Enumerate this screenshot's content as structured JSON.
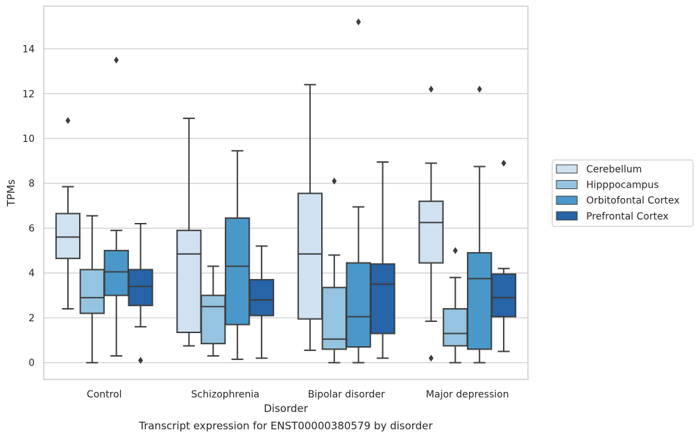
{
  "caption": "Transcript expression for ENST00000380579 by disorder",
  "chart_data": {
    "type": "box",
    "xlabel": "Disorder",
    "ylabel": "TPMs",
    "ylim": [
      -0.75,
      15.9
    ],
    "yticks": [
      0,
      2,
      4,
      6,
      8,
      10,
      12,
      14
    ],
    "grid": "horizontal",
    "legend_position": "right",
    "categories": [
      "Control",
      "Schizophrenia",
      "Bipolar disorder",
      "Major depression"
    ],
    "series": [
      {
        "name": "Cerebellum",
        "color": "#d0e1f2",
        "boxes": [
          {
            "whisker_low": 2.4,
            "q1": 4.65,
            "median": 5.6,
            "q3": 6.65,
            "whisker_high": 7.85,
            "outliers": [
              10.8
            ]
          },
          {
            "whisker_low": 0.75,
            "q1": 1.35,
            "median": 4.85,
            "q3": 5.9,
            "whisker_high": 10.9,
            "outliers": []
          },
          {
            "whisker_low": 0.55,
            "q1": 1.95,
            "median": 4.85,
            "q3": 7.55,
            "whisker_high": 12.4,
            "outliers": []
          },
          {
            "whisker_low": 1.85,
            "q1": 4.45,
            "median": 6.25,
            "q3": 7.2,
            "whisker_high": 8.9,
            "outliers": [
              12.2,
              0.2
            ]
          }
        ]
      },
      {
        "name": "Hipppocampus",
        "color": "#94c4df",
        "boxes": [
          {
            "whisker_low": 0.0,
            "q1": 2.2,
            "median": 2.9,
            "q3": 4.15,
            "whisker_high": 6.55,
            "outliers": []
          },
          {
            "whisker_low": 0.3,
            "q1": 0.85,
            "median": 2.5,
            "q3": 3.0,
            "whisker_high": 4.3,
            "outliers": []
          },
          {
            "whisker_low": 0.0,
            "q1": 0.6,
            "median": 1.05,
            "q3": 3.35,
            "whisker_high": 4.8,
            "outliers": [
              8.1
            ]
          },
          {
            "whisker_low": 0.0,
            "q1": 0.75,
            "median": 1.3,
            "q3": 2.4,
            "whisker_high": 3.8,
            "outliers": [
              5.0
            ]
          }
        ]
      },
      {
        "name": "Orbitofontal Cortex",
        "color": "#4a98c9",
        "boxes": [
          {
            "whisker_low": 0.3,
            "q1": 3.0,
            "median": 4.05,
            "q3": 5.0,
            "whisker_high": 5.9,
            "outliers": [
              13.5
            ]
          },
          {
            "whisker_low": 0.15,
            "q1": 1.7,
            "median": 4.3,
            "q3": 6.45,
            "whisker_high": 9.45,
            "outliers": []
          },
          {
            "whisker_low": 0.0,
            "q1": 0.7,
            "median": 2.05,
            "q3": 4.45,
            "whisker_high": 6.95,
            "outliers": [
              15.2
            ]
          },
          {
            "whisker_low": 0.0,
            "q1": 0.6,
            "median": 3.75,
            "q3": 4.9,
            "whisker_high": 8.75,
            "outliers": [
              12.2
            ]
          }
        ]
      },
      {
        "name": "Prefrontal Cortex",
        "color": "#2764a8",
        "boxes": [
          {
            "whisker_low": 1.6,
            "q1": 2.55,
            "median": 3.4,
            "q3": 4.15,
            "whisker_high": 6.2,
            "outliers": [
              0.1
            ]
          },
          {
            "whisker_low": 0.2,
            "q1": 2.1,
            "median": 2.8,
            "q3": 3.7,
            "whisker_high": 5.2,
            "outliers": []
          },
          {
            "whisker_low": 0.2,
            "q1": 1.3,
            "median": 3.5,
            "q3": 4.4,
            "whisker_high": 8.95,
            "outliers": []
          },
          {
            "whisker_low": 0.5,
            "q1": 2.05,
            "median": 2.9,
            "q3": 3.95,
            "whisker_high": 4.2,
            "outliers": [
              8.9
            ]
          }
        ]
      }
    ]
  }
}
